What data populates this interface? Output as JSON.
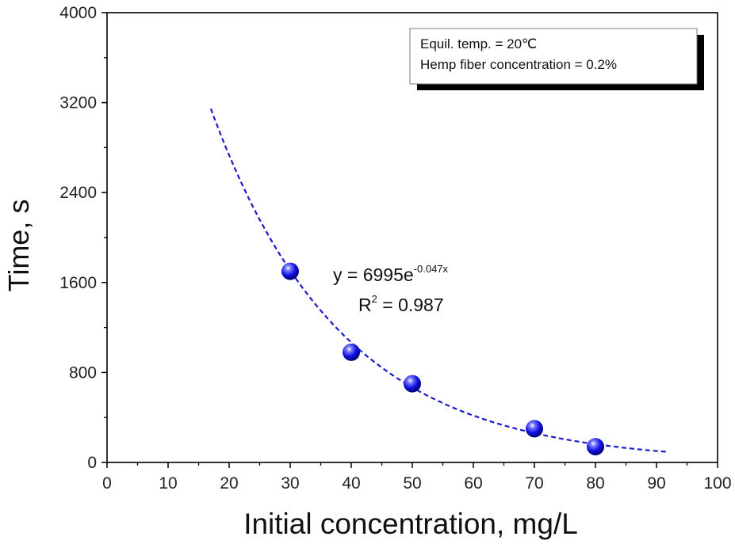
{
  "chart_data": {
    "type": "scatter",
    "xlabel": "Initial concentration, mg/L",
    "ylabel": "Time, s",
    "xlim": [
      0,
      100
    ],
    "ylim": [
      0,
      4000
    ],
    "x_ticks": [
      "0",
      "10",
      "20",
      "30",
      "40",
      "50",
      "60",
      "70",
      "80",
      "90",
      "100"
    ],
    "y_ticks": [
      "0",
      "800",
      "1600",
      "2400",
      "3200",
      "4000"
    ],
    "series": [
      {
        "x": [
          30,
          40,
          50,
          70,
          80
        ],
        "y": [
          1700,
          980,
          700,
          300,
          140
        ],
        "color": "#1010e0"
      }
    ],
    "fit": {
      "a": 6995,
      "b": -0.047,
      "x_range": [
        17,
        92
      ],
      "color": "#1a1ad0",
      "style": "dashed",
      "equation_main": "y = 6995e",
      "equation_exp": "-0.047x",
      "r2_prefix": "R",
      "r2_sup": "2",
      "r2_value": " = 0.987"
    },
    "legend": {
      "placement": "top-right",
      "lines": [
        "Equil. temp. = 20℃",
        "Hemp fiber concentration = 0.2%"
      ]
    },
    "grid": false
  }
}
